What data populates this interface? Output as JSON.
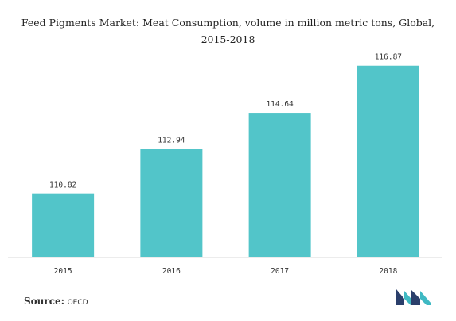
{
  "chart_data": {
    "type": "bar",
    "title": "Feed Pigments Market: Meat Consumption, volume in million metric tons, Global,",
    "title_line2": "2015-2018",
    "categories": [
      "2015",
      "2016",
      "2017",
      "2018"
    ],
    "values": [
      110.82,
      112.94,
      114.64,
      116.87
    ],
    "value_labels": [
      "110.82",
      "112.94",
      "114.64",
      "116.87"
    ],
    "xlabel": "",
    "ylabel": "",
    "ylim": [
      107.8,
      117.8
    ],
    "grid": false,
    "legend": "none",
    "bar_color": "#52c5c9"
  },
  "source": {
    "label": "Source:",
    "value": "OECD"
  },
  "logo": {
    "icon": "mordor-intelligence-logo-icon",
    "colors": [
      "#2b3f6b",
      "#3fb9c3"
    ]
  }
}
